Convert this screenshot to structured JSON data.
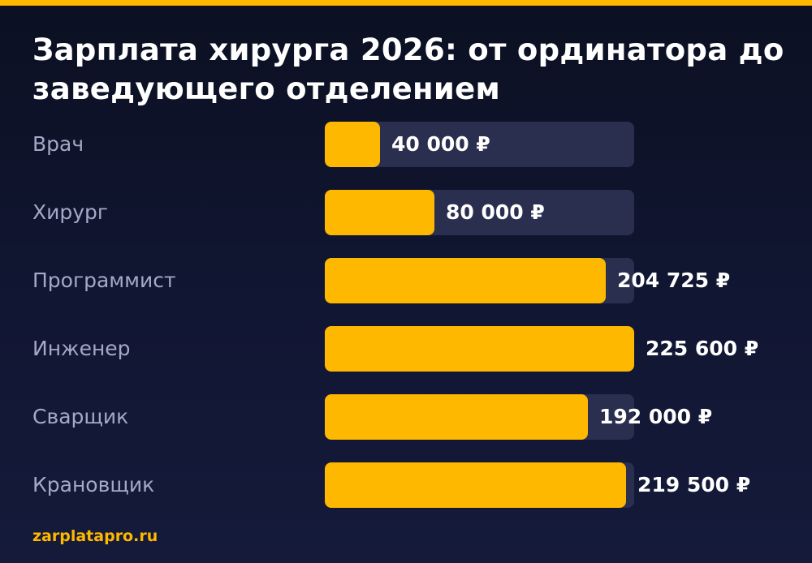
{
  "colors": {
    "accent": "#ffb800",
    "background": "#111633",
    "track": "#2a2f4f",
    "label": "#a3a9c6",
    "value": "#ffffff"
  },
  "chart_data": {
    "type": "bar",
    "orientation": "horizontal",
    "title": "Зарплата хирурга 2026: от ординатора до заведующего отделением",
    "categories": [
      "Врач",
      "Хирург",
      "Программист",
      "Инженер",
      "Сварщик",
      "Крановщик"
    ],
    "values": [
      40000,
      80000,
      204725,
      225600,
      192000,
      219500
    ],
    "value_labels": [
      "40 000 ₽",
      "80 000 ₽",
      "204 725 ₽",
      "225 600 ₽",
      "192 000 ₽",
      "219 500 ₽"
    ],
    "unit": "₽",
    "xlim": [
      0,
      225600
    ],
    "grid": false
  },
  "footer": {
    "site": "zarplatapro.ru"
  }
}
